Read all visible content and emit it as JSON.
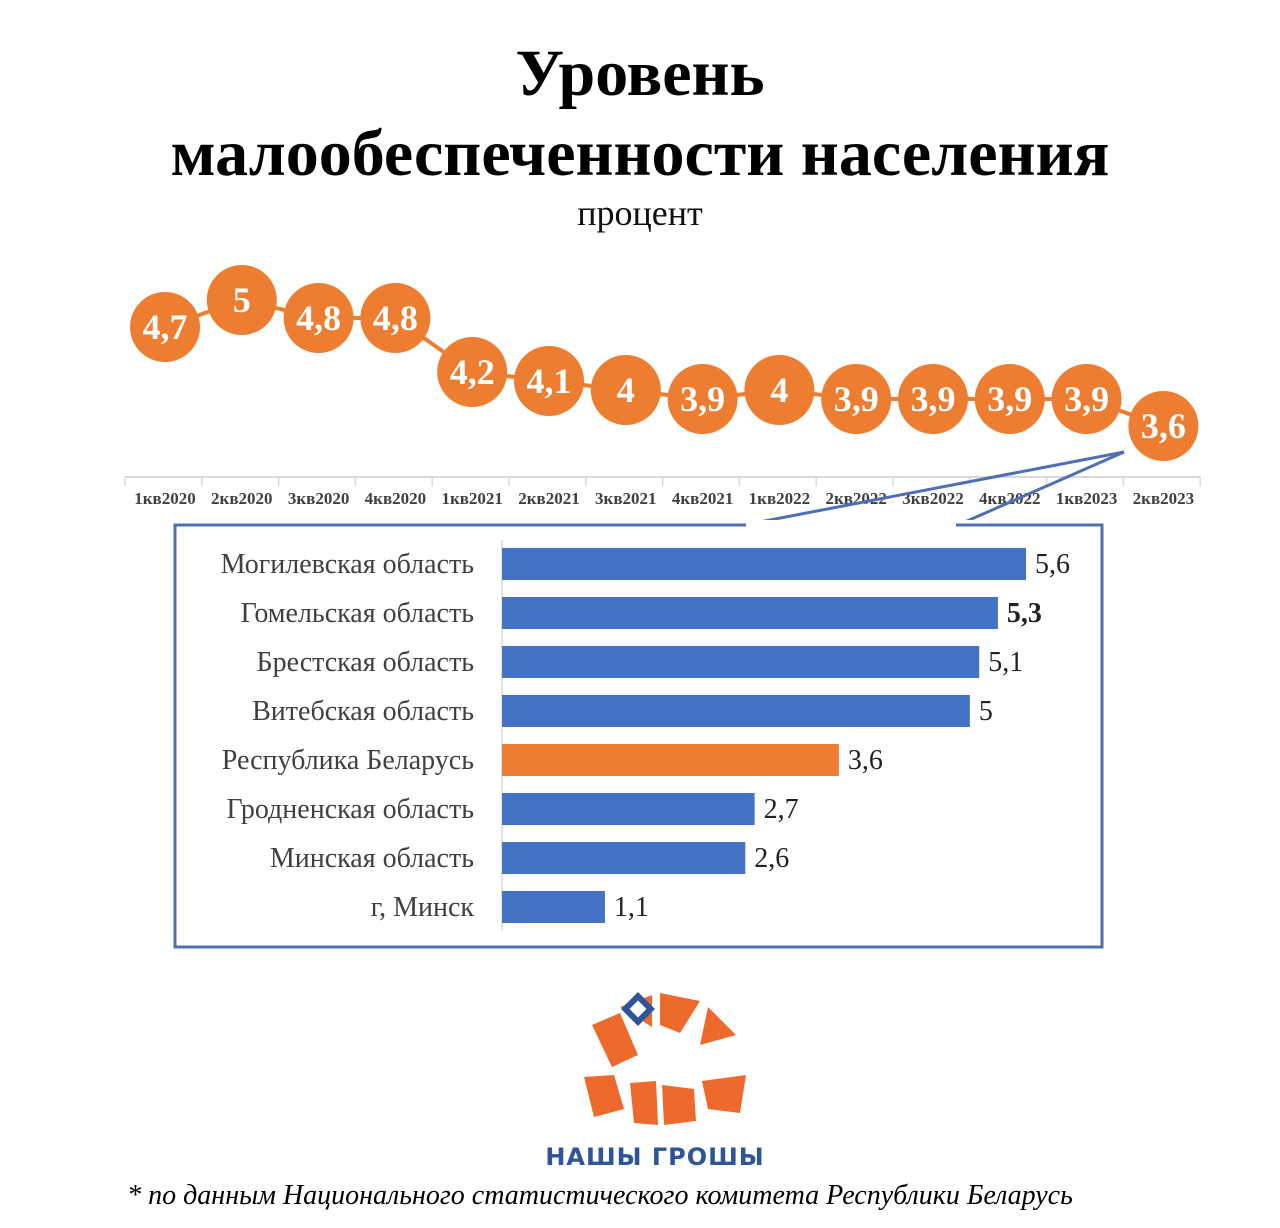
{
  "header": {
    "title_line1": "Уровень",
    "title_line2": "малообеспеченности населения",
    "unit": "процент"
  },
  "chart_data": [
    {
      "type": "line",
      "categories": [
        "1кв2020",
        "2кв2020",
        "3кв2020",
        "4кв2020",
        "1кв2021",
        "2кв2021",
        "3кв2021",
        "4кв2021",
        "1кв2022",
        "2кв2022",
        "3кв2022",
        "4кв2022",
        "1кв2023",
        "2кв2023"
      ],
      "values": [
        4.7,
        5,
        4.8,
        4.8,
        4.2,
        4.1,
        4,
        3.9,
        4,
        3.9,
        3.9,
        3.9,
        3.9,
        3.6
      ],
      "value_labels": [
        "4,7",
        "5",
        "4,8",
        "4,8",
        "4,2",
        "4,1",
        "4",
        "3,9",
        "4",
        "3,9",
        "3,9",
        "3,9",
        "3,9",
        "3,6"
      ],
      "ylim": [
        3.3,
        5.2
      ],
      "marker_color": "#ed7d31"
    },
    {
      "type": "bar",
      "orientation": "horizontal",
      "categories": [
        "Могилевская область",
        "Гомельская область",
        "Брестская область",
        "Витебская область",
        "Республика Беларусь",
        "Гродненская область",
        "Минская область",
        "г, Минск"
      ],
      "values": [
        5.6,
        5.3,
        5.1,
        5,
        3.6,
        2.7,
        2.6,
        1.1
      ],
      "value_labels": [
        "5,6",
        "5,3",
        "5,1",
        "5",
        "3,6",
        "2,7",
        "2,6",
        "1,1"
      ],
      "highlight_index": 4,
      "bold_label_index": 1,
      "xlim": [
        0,
        5.6
      ],
      "colors": {
        "default": "#4472c4",
        "highlight": "#ed7d31",
        "frame": "#4f6fb0"
      }
    }
  ],
  "logo": {
    "text": "НАШЫ ГРОШЫ",
    "color": "#ed6a2c"
  },
  "footnote": "* по данным Национального статистического комитета Республики Беларусь"
}
